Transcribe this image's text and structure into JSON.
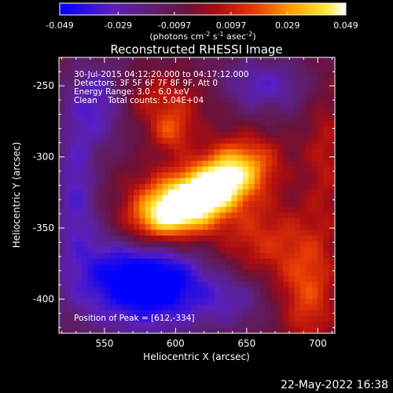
{
  "colorbar": {
    "ticks": [
      "-0.049",
      "-0.029",
      "-0.0097",
      "0.0097",
      "0.029",
      "0.049"
    ],
    "tick_values": [
      -0.049,
      -0.029,
      -0.0097,
      0.0097,
      0.029,
      0.049
    ],
    "range": [
      -0.049,
      0.049
    ],
    "unit_prefix": "(photons cm",
    "unit_exp1": "-2",
    "unit_mid": " s",
    "unit_exp2": "-1",
    "unit_end": " asec",
    "unit_exp3": "-2",
    "unit_close": ")"
  },
  "chart_data": {
    "type": "heatmap",
    "title": "Reconstructed RHESSI Image",
    "xlabel": "Heliocentric X (arcsec)",
    "ylabel": "Heliocentric Y (arcsec)",
    "xlim": [
      518,
      712
    ],
    "ylim": [
      -424,
      -230
    ],
    "x_ticks": [
      550,
      600,
      650,
      700
    ],
    "y_ticks": [
      -250,
      -300,
      -350,
      -400
    ],
    "x_tick_labels": [
      "550",
      "600",
      "650",
      "700"
    ],
    "y_tick_labels": [
      "-250",
      "-300",
      "-350",
      "-400"
    ],
    "colormap": "IDL rainbow-hot (blue-purple-red-yellow-white)",
    "peak": [
      612,
      -334
    ],
    "blobs": [
      {
        "x": 614,
        "y": -330,
        "sx": 32,
        "sy": 13,
        "angle": 25,
        "amp": 1.15
      },
      {
        "x": 594,
        "y": -340,
        "sx": 24,
        "sy": 22,
        "angle": 0,
        "amp": 0.55
      },
      {
        "x": 640,
        "y": -305,
        "sx": 20,
        "sy": 14,
        "angle": 20,
        "amp": 0.55
      },
      {
        "x": 597,
        "y": -282,
        "sx": 10,
        "sy": 10,
        "angle": 0,
        "amp": 0.45
      },
      {
        "x": 660,
        "y": -358,
        "sx": 22,
        "sy": 22,
        "angle": 0,
        "amp": 0.4
      },
      {
        "x": 693,
        "y": -395,
        "sx": 14,
        "sy": 30,
        "angle": 0,
        "amp": 0.5
      },
      {
        "x": 705,
        "y": -300,
        "sx": 10,
        "sy": 40,
        "angle": 0,
        "amp": 0.3
      },
      {
        "x": 590,
        "y": -260,
        "sx": 30,
        "sy": 14,
        "angle": 0,
        "amp": 0.35
      },
      {
        "x": 545,
        "y": -262,
        "sx": 16,
        "sy": 20,
        "angle": 0,
        "amp": -0.55
      },
      {
        "x": 555,
        "y": -382,
        "sx": 28,
        "sy": 26,
        "angle": 0,
        "amp": -0.6
      },
      {
        "x": 592,
        "y": -388,
        "sx": 24,
        "sy": 22,
        "angle": 0,
        "amp": -0.75
      },
      {
        "x": 660,
        "y": -250,
        "sx": 24,
        "sy": 14,
        "angle": 0,
        "amp": -0.45
      },
      {
        "x": 530,
        "y": -320,
        "sx": 10,
        "sy": 30,
        "angle": 0,
        "amp": -0.45
      },
      {
        "x": 640,
        "y": -400,
        "sx": 18,
        "sy": 14,
        "angle": 0,
        "amp": -0.35
      }
    ]
  },
  "info": {
    "line1": "30-Jul-2015 04:12:20.000 to 04:17:12.000",
    "line2": "Detectors: 3F 5F 6F 7F 8F 9F, Att 0",
    "line3": "Energy Range: 3.0 - 6.0 keV",
    "line4": "Clean    Total counts: 5.04E+04",
    "peak_text": "Position of Peak = [612,-334]"
  },
  "footer": {
    "date": "22-May-2022 16:38"
  }
}
